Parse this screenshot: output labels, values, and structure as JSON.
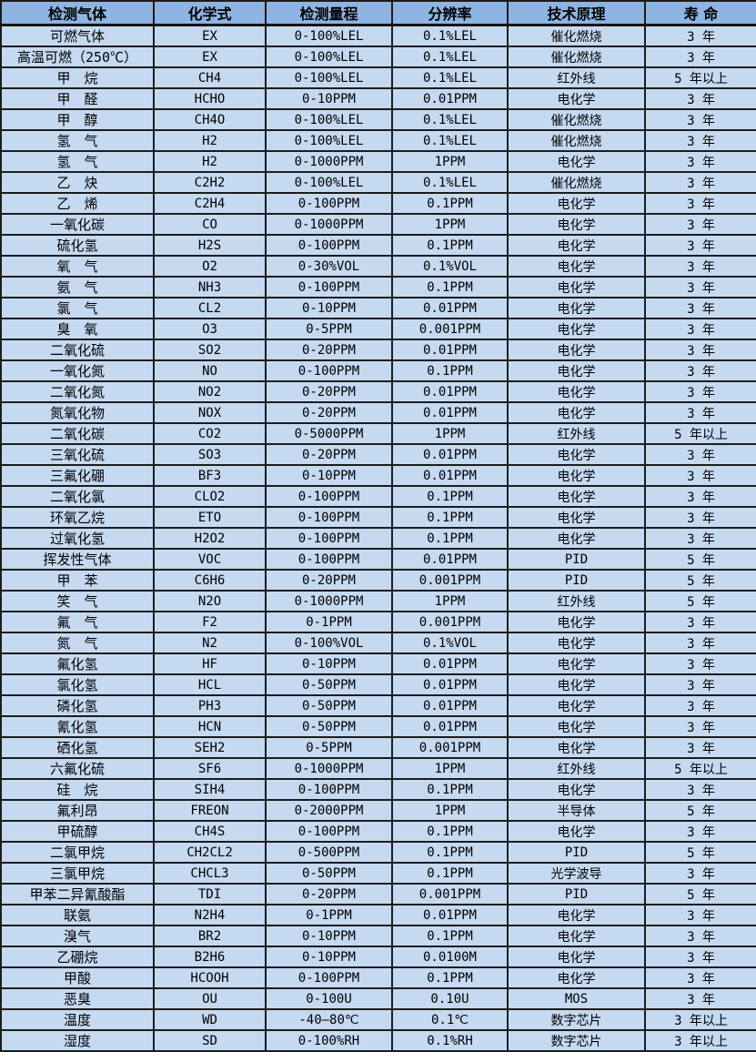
{
  "colors": {
    "header_bg": "#8DB4E2",
    "row_bg": "#C5D9F1",
    "border": "#1C1C1C",
    "text": "#000000"
  },
  "table": {
    "headers": [
      "检测气体",
      "化学式",
      "检测量程",
      "分辨率",
      "技术原理",
      "寿 命"
    ],
    "rows": [
      [
        "可燃气体",
        "EX",
        "0-100%LEL",
        "0.1%LEL",
        "催化燃烧",
        "3 年"
      ],
      [
        "高温可燃（250℃）",
        "EX",
        "0-100%LEL",
        "0.1%LEL",
        "催化燃烧",
        "3 年"
      ],
      [
        "甲　烷",
        "CH4",
        "0-100%LEL",
        "0.1%LEL",
        "红外线",
        "5 年以上"
      ],
      [
        "甲　醛",
        "HCHO",
        "0-10PPM",
        "0.01PPM",
        "电化学",
        "3 年"
      ],
      [
        "甲　醇",
        "CH4O",
        "0-100%LEL",
        "0.1%LEL",
        "催化燃烧",
        "3 年"
      ],
      [
        "氢　气",
        "H2",
        "0-100%LEL",
        "0.1%LEL",
        "催化燃烧",
        "3 年"
      ],
      [
        "氢　气",
        "H2",
        "0-1000PPM",
        "1PPM",
        "电化学",
        "3 年"
      ],
      [
        "乙　炔",
        "C2H2",
        "0-100%LEL",
        "0.1%LEL",
        "催化燃烧",
        "3 年"
      ],
      [
        "乙　烯",
        "C2H4",
        "0-100PPM",
        "0.1PPM",
        "电化学",
        "3 年"
      ],
      [
        "一氧化碳",
        "CO",
        "0-1000PPM",
        "1PPM",
        "电化学",
        "3 年"
      ],
      [
        "硫化氢",
        "H2S",
        "0-100PPM",
        "0.1PPM",
        "电化学",
        "3 年"
      ],
      [
        "氧　气",
        "O2",
        "0-30%VOL",
        "0.1%VOL",
        "电化学",
        "3 年"
      ],
      [
        "氨　气",
        "NH3",
        "0-100PPM",
        "0.1PPM",
        "电化学",
        "3 年"
      ],
      [
        "氯　气",
        "CL2",
        "0-10PPM",
        "0.01PPM",
        "电化学",
        "3 年"
      ],
      [
        "臭　氧",
        "O3",
        "0-5PPM",
        "0.001PPM",
        "电化学",
        "3 年"
      ],
      [
        "二氧化硫",
        "SO2",
        "0-20PPM",
        "0.01PPM",
        "电化学",
        "3 年"
      ],
      [
        "一氧化氮",
        "NO",
        "0-100PPM",
        "0.1PPM",
        "电化学",
        "3 年"
      ],
      [
        "二氧化氮",
        "NO2",
        "0-20PPM",
        "0.01PPM",
        "电化学",
        "3 年"
      ],
      [
        "氮氧化物",
        "NOX",
        "0-20PPM",
        "0.01PPM",
        "电化学",
        "3 年"
      ],
      [
        "二氧化碳",
        "CO2",
        "0-5000PPM",
        "1PPM",
        "红外线",
        "5 年以上"
      ],
      [
        "三氧化硫",
        "SO3",
        "0-20PPM",
        "0.01PPM",
        "电化学",
        "3 年"
      ],
      [
        "三氟化硼",
        "BF3",
        "0-10PPM",
        "0.01PPM",
        "电化学",
        "3 年"
      ],
      [
        "二氧化氯",
        "CLO2",
        "0-100PPM",
        "0.1PPM",
        "电化学",
        "3 年"
      ],
      [
        "环氧乙烷",
        "ETO",
        "0-100PPM",
        "0.1PPM",
        "电化学",
        "3 年"
      ],
      [
        "过氧化氢",
        "H2O2",
        "0-100PPM",
        "0.1PPM",
        "电化学",
        "3 年"
      ],
      [
        "挥发性气体",
        "VOC",
        "0-100PPM",
        "0.01PPM",
        "PID",
        "5 年"
      ],
      [
        "甲　苯",
        "C6H6",
        "0-20PPM",
        "0.001PPM",
        "PID",
        "5 年"
      ],
      [
        "笑　气",
        "N2O",
        "0-1000PPM",
        "1PPM",
        "红外线",
        "5 年"
      ],
      [
        "氟　气",
        "F2",
        "0-1PPM",
        "0.001PPM",
        "电化学",
        "3 年"
      ],
      [
        "氮　气",
        "N2",
        "0-100%VOL",
        "0.1%VOL",
        "电化学",
        "3 年"
      ],
      [
        "氟化氢",
        "HF",
        "0-10PPM",
        "0.01PPM",
        "电化学",
        "3 年"
      ],
      [
        "氯化氢",
        "HCL",
        "0-50PPM",
        "0.01PPM",
        "电化学",
        "3 年"
      ],
      [
        "磷化氢",
        "PH3",
        "0-50PPM",
        "0.01PPM",
        "电化学",
        "3 年"
      ],
      [
        "氰化氢",
        "HCN",
        "0-50PPM",
        "0.01PPM",
        "电化学",
        "3 年"
      ],
      [
        "硒化氢",
        "SEH2",
        "0-5PPM",
        "0.001PPM",
        "电化学",
        "3 年"
      ],
      [
        "六氟化硫",
        "SF6",
        "0-1000PPM",
        "1PPM",
        "红外线",
        "5 年以上"
      ],
      [
        "硅　烷",
        "SIH4",
        "0-100PPM",
        "0.1PPM",
        "电化学",
        "3 年"
      ],
      [
        "氟利昂",
        "FREON",
        "0-2000PPM",
        "1PPM",
        "半导体",
        "5 年"
      ],
      [
        "甲硫醇",
        "CH4S",
        "0-100PPM",
        "0.1PPM",
        "电化学",
        "3 年"
      ],
      [
        "二氯甲烷",
        "CH2CL2",
        "0-500PPM",
        "0.1PPM",
        "PID",
        "5 年"
      ],
      [
        "三氯甲烷",
        "CHCL3",
        "0-50PPM",
        "0.1PPM",
        "光学波导",
        "3 年"
      ],
      [
        "甲苯二异氰酸酯",
        "TDI",
        "0-20PPM",
        "0.001PPM",
        "PID",
        "5 年"
      ],
      [
        "联氨",
        "N2H4",
        "0-1PPM",
        "0.01PPM",
        "电化学",
        "3 年"
      ],
      [
        "溴气",
        "BR2",
        "0-10PPM",
        "0.1PPM",
        "电化学",
        "3 年"
      ],
      [
        "乙硼烷",
        "B2H6",
        "0-10PPM",
        "0.0100M",
        "电化学",
        "3 年"
      ],
      [
        "甲酸",
        "HCOOH",
        "0-100PPM",
        "0.1PPM",
        "电化学",
        "3 年"
      ],
      [
        "恶臭",
        "OU",
        "0-100U",
        "0.10U",
        "MOS",
        "3 年"
      ],
      [
        "温度",
        "WD",
        "-40—80℃",
        "0.1℃",
        "数字芯片",
        "3 年以上"
      ],
      [
        "湿度",
        "SD",
        "0-100%RH",
        "0.1%RH",
        "数字芯片",
        "3 年以上"
      ]
    ]
  }
}
